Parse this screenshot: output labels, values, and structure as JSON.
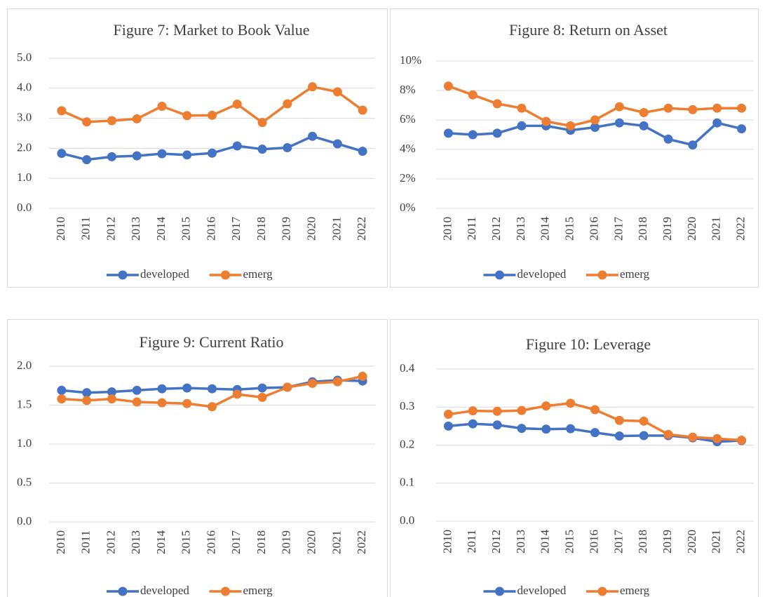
{
  "chart_data": [
    {
      "type": "line",
      "title": "Figure 7: Market to Book Value",
      "categories": [
        "2010",
        "2011",
        "2012",
        "2013",
        "2014",
        "2015",
        "2016",
        "2017",
        "2018",
        "2019",
        "2020",
        "2021",
        "2022"
      ],
      "series": [
        {
          "name": "developed",
          "color": "#4472c4",
          "values": [
            1.83,
            1.62,
            1.72,
            1.75,
            1.82,
            1.78,
            1.84,
            2.08,
            1.97,
            2.02,
            2.4,
            2.15,
            1.9
          ]
        },
        {
          "name": "emerg",
          "color": "#ed7d31",
          "values": [
            3.25,
            2.88,
            2.92,
            2.98,
            3.4,
            3.09,
            3.1,
            3.47,
            2.86,
            3.48,
            4.05,
            3.88,
            3.27
          ]
        }
      ],
      "ylim": [
        0,
        5
      ],
      "yticks": [
        {
          "value": 0,
          "label": "0.0"
        },
        {
          "value": 1,
          "label": "1.0"
        },
        {
          "value": 2,
          "label": "2.0"
        },
        {
          "value": 3,
          "label": "3.0"
        },
        {
          "value": 4,
          "label": "4.0"
        },
        {
          "value": 5,
          "label": "5.0"
        }
      ],
      "grid": true,
      "legend": "bottom"
    },
    {
      "type": "line",
      "title": "Figure 8: Return on Asset",
      "categories": [
        "2010",
        "2011",
        "2012",
        "2013",
        "2014",
        "2015",
        "2016",
        "2017",
        "2018",
        "2019",
        "2020",
        "2021",
        "2022"
      ],
      "series": [
        {
          "name": "developed",
          "color": "#4472c4",
          "values": [
            5.1,
            5.0,
            5.1,
            5.6,
            5.6,
            5.3,
            5.5,
            5.8,
            5.6,
            4.7,
            4.3,
            5.8,
            5.4
          ]
        },
        {
          "name": "emerg",
          "color": "#ed7d31",
          "values": [
            8.3,
            7.7,
            7.1,
            6.8,
            5.9,
            5.6,
            6.0,
            6.9,
            6.5,
            6.8,
            6.7,
            6.8,
            6.8
          ]
        }
      ],
      "ylim": [
        0,
        10
      ],
      "yticks": [
        {
          "value": 0,
          "label": "0%"
        },
        {
          "value": 2,
          "label": "2%"
        },
        {
          "value": 4,
          "label": "4%"
        },
        {
          "value": 6,
          "label": "6%"
        },
        {
          "value": 8,
          "label": "8%"
        },
        {
          "value": 10,
          "label": "10%"
        }
      ],
      "grid": true,
      "legend": "bottom"
    },
    {
      "type": "line",
      "title": "Figure 9: Current Ratio",
      "categories": [
        "2010",
        "2011",
        "2012",
        "2013",
        "2014",
        "2015",
        "2016",
        "2017",
        "2018",
        "2019",
        "2020",
        "2021",
        "2022"
      ],
      "series": [
        {
          "name": "developed",
          "color": "#4472c4",
          "values": [
            1.69,
            1.66,
            1.67,
            1.69,
            1.71,
            1.72,
            1.71,
            1.7,
            1.72,
            1.73,
            1.8,
            1.82,
            1.81
          ]
        },
        {
          "name": "emerg",
          "color": "#ed7d31",
          "values": [
            1.58,
            1.56,
            1.58,
            1.54,
            1.53,
            1.52,
            1.48,
            1.64,
            1.6,
            1.73,
            1.78,
            1.8,
            1.87
          ]
        }
      ],
      "ylim": [
        0,
        2
      ],
      "yticks": [
        {
          "value": 0,
          "label": "0.0"
        },
        0.5,
        {
          "value": 1,
          "label": "1.0"
        },
        1.5,
        {
          "value": 2,
          "label": "2.0"
        }
      ],
      "grid": true,
      "legend": "bottom"
    },
    {
      "type": "line",
      "title": "Figure 10: Leverage",
      "categories": [
        "2010",
        "2011",
        "2012",
        "2013",
        "2014",
        "2015",
        "2016",
        "2017",
        "2018",
        "2019",
        "2020",
        "2021",
        "2022"
      ],
      "series": [
        {
          "name": "developed",
          "color": "#4472c4",
          "values": [
            0.25,
            0.256,
            0.253,
            0.244,
            0.242,
            0.243,
            0.233,
            0.224,
            0.225,
            0.225,
            0.219,
            0.209,
            0.212
          ]
        },
        {
          "name": "emerg",
          "color": "#ed7d31",
          "values": [
            0.281,
            0.29,
            0.289,
            0.291,
            0.303,
            0.31,
            0.293,
            0.265,
            0.263,
            0.228,
            0.221,
            0.217,
            0.213
          ]
        }
      ],
      "ylim": [
        0,
        0.4
      ],
      "yticks": [
        {
          "value": 0,
          "label": "0.0"
        },
        0.1,
        0.2,
        0.3,
        0.4
      ],
      "grid": true,
      "legend": "bottom"
    }
  ]
}
